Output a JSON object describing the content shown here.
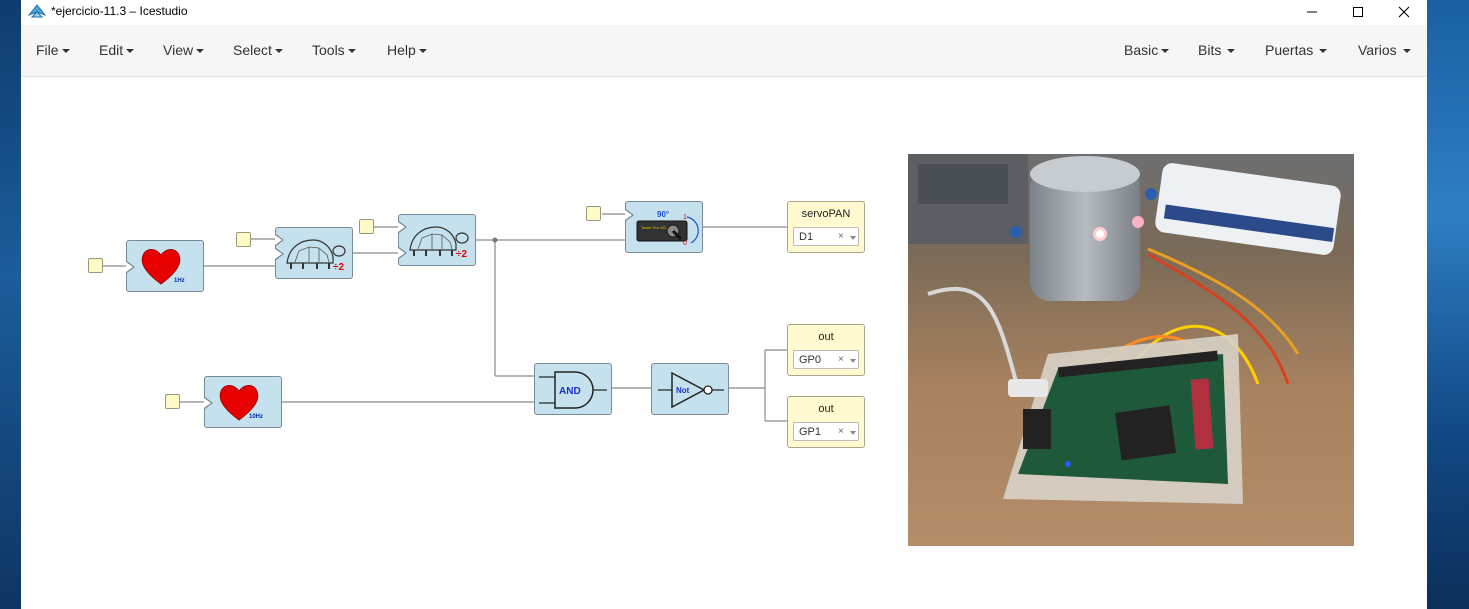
{
  "window": {
    "title": "*ejercicio-11.3 – Icestudio"
  },
  "menus_left": [
    {
      "label": "File"
    },
    {
      "label": "Edit"
    },
    {
      "label": "View"
    },
    {
      "label": "Select"
    },
    {
      "label": "Tools"
    },
    {
      "label": "Help"
    }
  ],
  "menus_right": [
    {
      "label": "Basic"
    },
    {
      "label": "Bits"
    },
    {
      "label": "Puertas"
    },
    {
      "label": "Varios"
    }
  ],
  "blocks": {
    "heartbeat1": {
      "label": "1Hz"
    },
    "heartbeat2": {
      "label": "10Hz"
    },
    "prescaler1": {
      "label": "÷2"
    },
    "prescaler2": {
      "label": "÷2"
    },
    "servo": {
      "angle": "90°",
      "text": "Tower Pro SG-90",
      "marks": [
        "1",
        "0"
      ]
    },
    "and_gate": {
      "label": "AND"
    },
    "not_gate": {
      "label": "Not"
    }
  },
  "outputs": [
    {
      "name": "servoPAN",
      "pin": "D1"
    },
    {
      "name": "out",
      "pin": "GP0"
    },
    {
      "name": "out",
      "pin": "GP1"
    }
  ],
  "pin_clear": "×",
  "colors": {
    "block_fill": "#c5e1ee",
    "const_fill": "#fffac8",
    "output_fill": "#fffad0",
    "wire": "#777777",
    "heart": "#e60000"
  }
}
